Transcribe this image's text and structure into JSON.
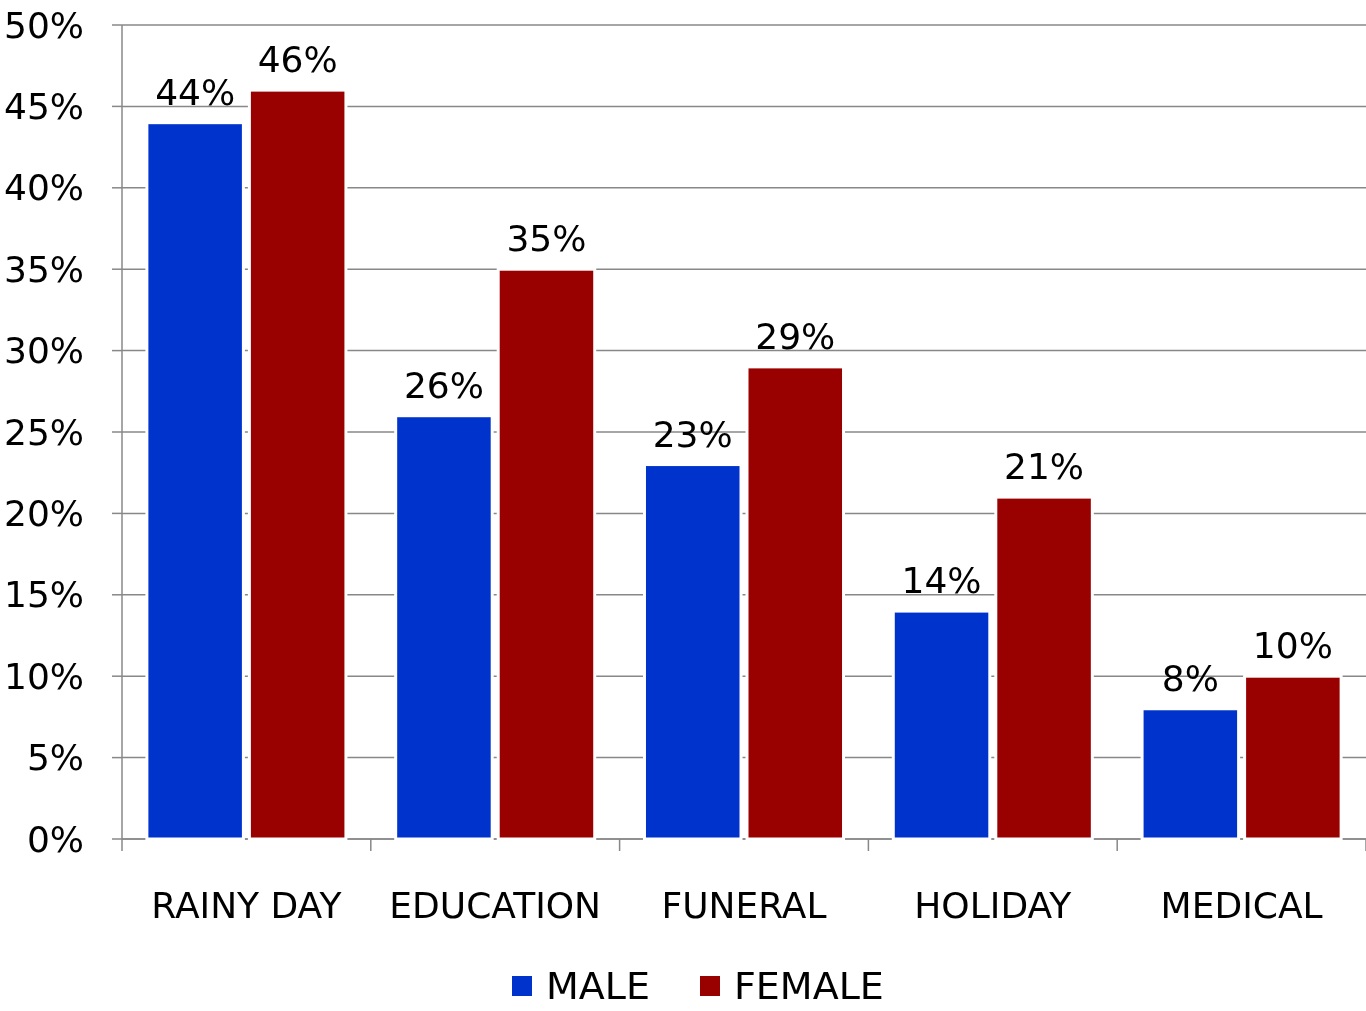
{
  "chart_data": {
    "type": "bar",
    "categories": [
      "RAINY DAY",
      "EDUCATION",
      "FUNERAL",
      "HOLIDAY",
      "MEDICAL"
    ],
    "series": [
      {
        "name": "MALE",
        "color": "#0033cc",
        "values": [
          44,
          26,
          23,
          14,
          8
        ],
        "value_labels": [
          "44%",
          "26%",
          "23%",
          "14%",
          "8%"
        ]
      },
      {
        "name": "FEMALE",
        "color": "#990000",
        "values": [
          46,
          35,
          29,
          21,
          10
        ],
        "value_labels": [
          "46%",
          "35%",
          "29%",
          "21%",
          "10%"
        ]
      }
    ],
    "ylim": [
      0,
      50
    ],
    "yticks": [
      {
        "value": 0,
        "label": "0%"
      },
      {
        "value": 5,
        "label": "5%"
      },
      {
        "value": 10,
        "label": "10%"
      },
      {
        "value": 15,
        "label": "15%"
      },
      {
        "value": 20,
        "label": "20%"
      },
      {
        "value": 25,
        "label": "25%"
      },
      {
        "value": 30,
        "label": "30%"
      },
      {
        "value": 35,
        "label": "35%"
      },
      {
        "value": 40,
        "label": "40%"
      },
      {
        "value": 45,
        "label": "45%"
      },
      {
        "value": 50,
        "label": "50%"
      }
    ],
    "grid": "y",
    "legend": "bottom"
  }
}
